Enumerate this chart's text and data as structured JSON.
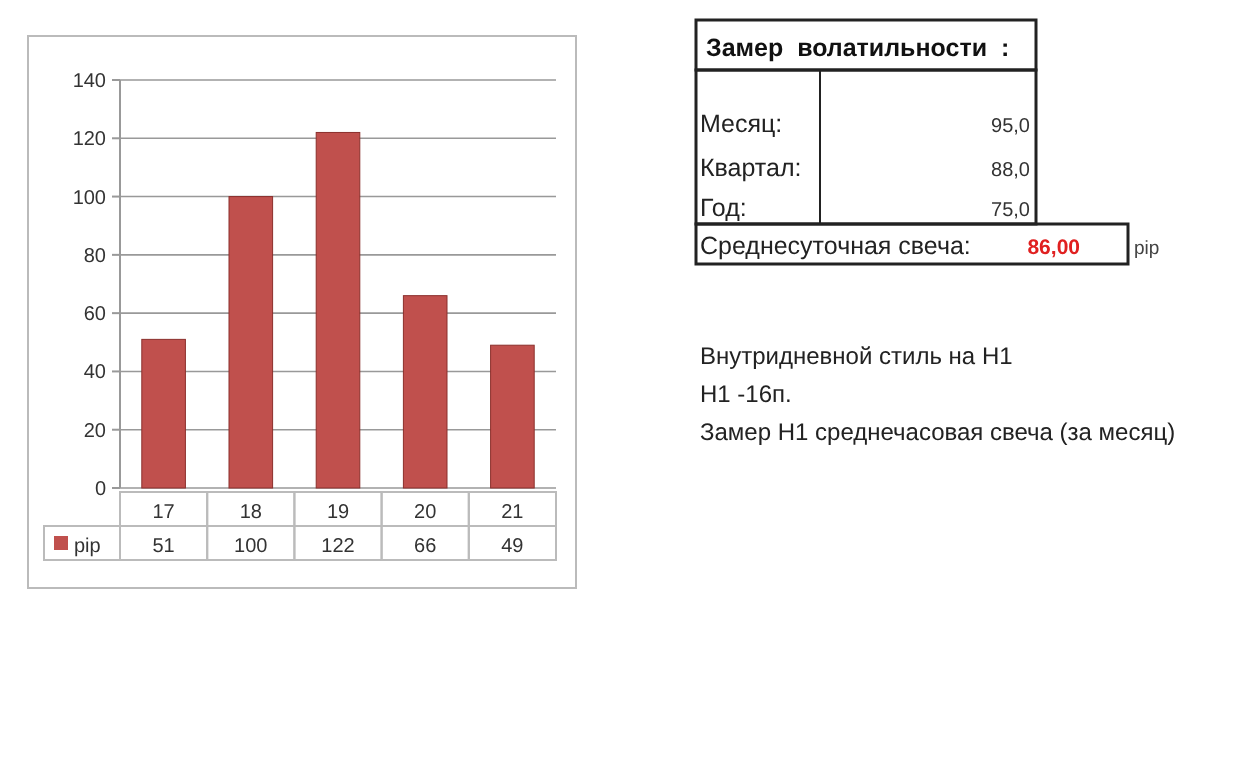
{
  "chart_data": [
    {
      "type": "bar",
      "categories": [
        "17",
        "18",
        "19",
        "20",
        "21"
      ],
      "series": [
        {
          "name": "pip",
          "color": "#c0504d",
          "values": [
            51,
            100,
            122,
            66,
            49
          ]
        }
      ],
      "ylim": [
        0,
        140
      ],
      "yticks": [
        0,
        20,
        40,
        60,
        80,
        100,
        120,
        140
      ],
      "grid": "y",
      "legend": "bottom",
      "data_labels": true
    },
    {
      "type": "other",
      "title": "Замер  волатильности  :",
      "annotations": [
        "Месяц:",
        "95,0",
        "Квартал:",
        "88,0",
        "Год:",
        "75,0",
        "Среднесуточная свеча:",
        "86,00",
        "pip",
        "Внутридневной стиль на H1",
        "H1 -16п.",
        "Замер H1 среднечасовая свеча (за месяц)"
      ]
    }
  ]
}
